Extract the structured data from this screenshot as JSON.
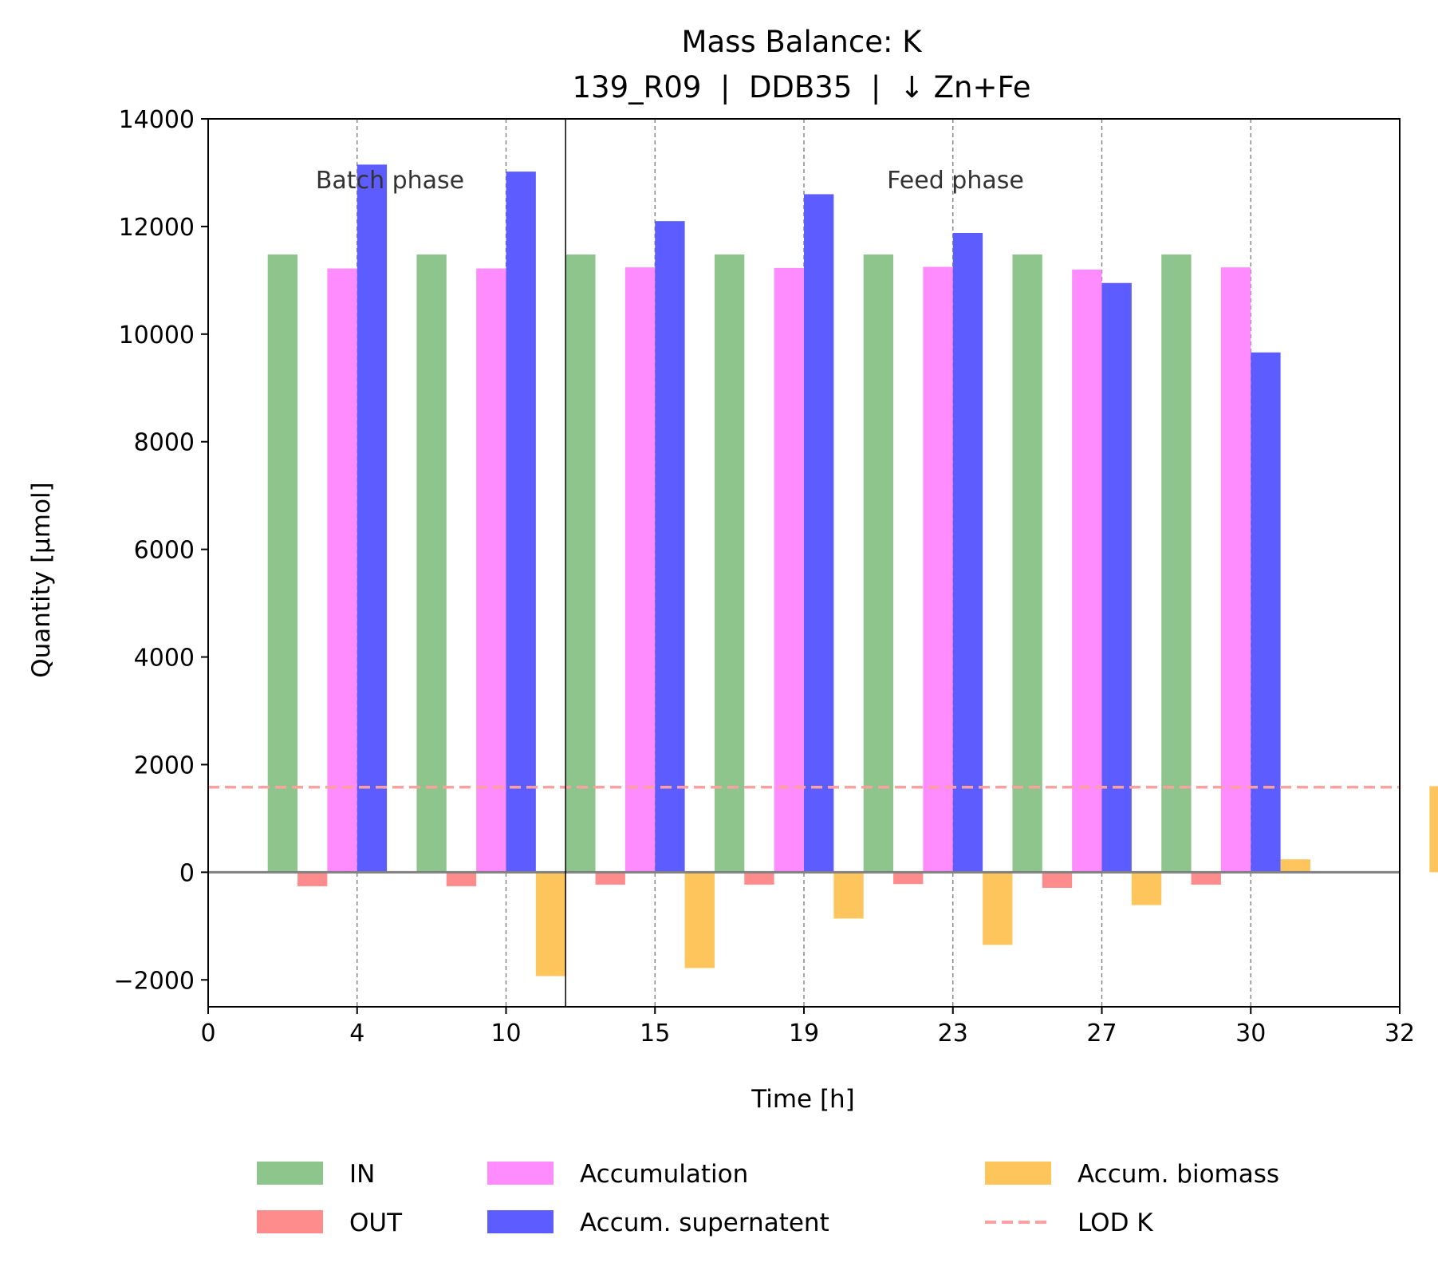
{
  "chart_data": {
    "type": "bar",
    "title": "Mass Balance: K",
    "subtitle": "139_R09  |  DDB35  |  ↓ Zn+Fe",
    "xlabel": "Time [h]",
    "ylabel": "Quantity [µmol]",
    "ylim": [
      -2500,
      14000
    ],
    "yticks": [
      -2000,
      0,
      2000,
      4000,
      6000,
      8000,
      10000,
      12000,
      14000
    ],
    "ytick_labels": [
      "−2000",
      "0",
      "2000",
      "4000",
      "6000",
      "8000",
      "10000",
      "12000",
      "14000"
    ],
    "xtick_labels": [
      "0",
      "4",
      "10",
      "15",
      "19",
      "23",
      "27",
      "30",
      "32"
    ],
    "categories": [
      "4",
      "10",
      "15",
      "19",
      "23",
      "27",
      "30",
      "32"
    ],
    "series": [
      {
        "name": "IN",
        "color": "#8dc58d",
        "values": [
          11480,
          11480,
          11480,
          11480,
          11480,
          11480,
          11480,
          null
        ]
      },
      {
        "name": "OUT",
        "color": "#ff8c8c",
        "values": [
          -260,
          -260,
          -230,
          -230,
          -220,
          -290,
          -230,
          null
        ]
      },
      {
        "name": "Accumulation",
        "color": "#ff8cff",
        "values": [
          11220,
          11220,
          11240,
          11230,
          11250,
          11200,
          11240,
          null
        ]
      },
      {
        "name": "Accum. supernatent",
        "color": "#5c5cff",
        "values": [
          13150,
          13020,
          12100,
          12600,
          11880,
          10950,
          9660,
          null
        ]
      },
      {
        "name": "Accum. biomass",
        "color": "#fdc55c",
        "values": [
          null,
          -1930,
          -1780,
          -860,
          -1350,
          -610,
          240,
          1600
        ]
      }
    ],
    "lod": {
      "name": "LOD K",
      "value": 1580,
      "color": "#ffa0a0"
    },
    "phases": [
      {
        "label": "Batch phase",
        "boundary": "10"
      },
      {
        "label": "Feed phase"
      }
    ],
    "grid": "vertical dashed lines at sample times",
    "legend_position": "bottom, outside plot, 3 columns"
  }
}
